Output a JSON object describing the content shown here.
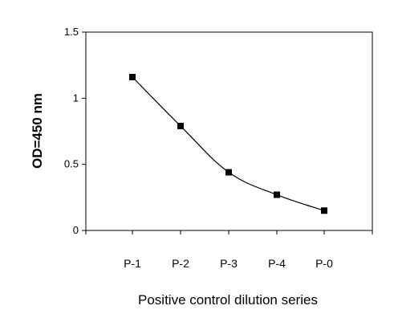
{
  "chart_data": {
    "type": "line",
    "categories": [
      "P-1",
      "P-2",
      "P-3",
      "P-4",
      "P-0"
    ],
    "series": [
      {
        "values": [
          1.16,
          0.79,
          0.44,
          0.27,
          0.15
        ]
      }
    ],
    "title": "",
    "xlabel": "Positive control dilution series",
    "ylabel": "OD=450 nm",
    "ylim": [
      0,
      1.5
    ],
    "yticks": [
      "0",
      "0.5",
      "1",
      "1.5"
    ],
    "ytick_values": [
      0,
      0.5,
      1,
      1.5
    ],
    "grid": false,
    "legend": "none",
    "marker": "square",
    "line_color": "#000000",
    "smooth": true
  }
}
